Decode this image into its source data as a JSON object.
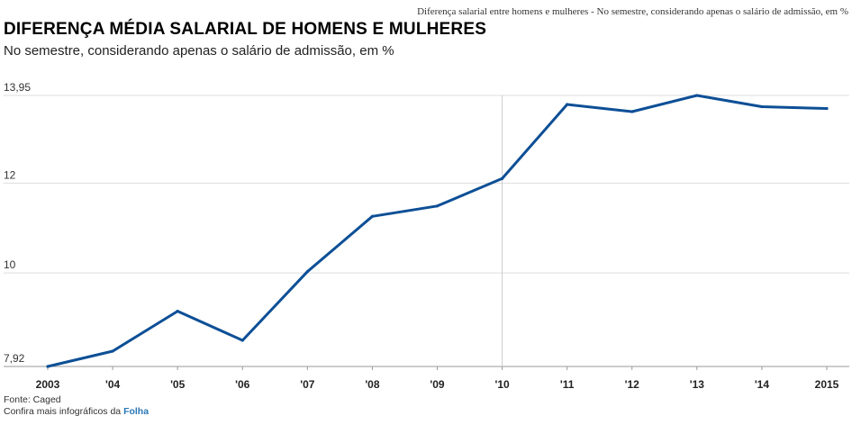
{
  "header": {
    "top_caption": "Diferença salarial entre homens e mulheres - No semestre, considerando apenas o salário de admissão, em %",
    "title": "DIFERENÇA MÉDIA SALARIAL DE HOMENS E MULHERES",
    "subtitle": "No semestre, considerando apenas o salário de admissão, em %"
  },
  "footer": {
    "source": "Fonte: Caged",
    "more_prefix": "Confira mais infográficos da ",
    "more_brand": "Folha"
  },
  "colors": {
    "line": "#0d4f96",
    "grid": "#dddddd",
    "highlight_line": "#cccccc",
    "brand": "#2a77b6"
  },
  "chart_data": {
    "type": "line",
    "title": "DIFERENÇA MÉDIA SALARIAL DE HOMENS E MULHERES",
    "subtitle": "No semestre, considerando apenas o salário de admissão, em %",
    "categories": [
      "2003",
      "'04",
      "'05",
      "'06",
      "'07",
      "'08",
      "'09",
      "'10",
      "'11",
      "'12",
      "'13",
      "'14",
      "2015"
    ],
    "series": [
      {
        "values": [
          7.92,
          8.26,
          9.15,
          8.5,
          10.03,
          11.26,
          11.49,
          12.1,
          13.75,
          13.59,
          13.95,
          13.7,
          13.66
        ]
      }
    ],
    "y_ticks": [
      {
        "value": 13.95,
        "label": "13,95"
      },
      {
        "value": 12,
        "label": "12"
      },
      {
        "value": 10,
        "label": "10"
      },
      {
        "value": 7.92,
        "label": "7,92"
      }
    ],
    "ylim": [
      7.92,
      13.95
    ],
    "highlight_category": "'10",
    "grid": true,
    "legend": "none",
    "source": "Fonte: Caged"
  }
}
